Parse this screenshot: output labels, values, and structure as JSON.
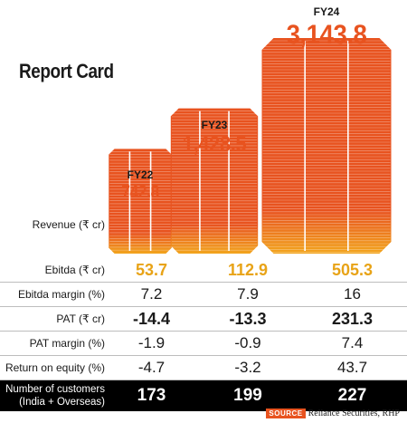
{
  "chart_data": {
    "type": "bar",
    "title": "Report Card",
    "categories": [
      "FY22",
      "FY23",
      "FY24"
    ],
    "series": [
      {
        "name": "Revenue (₹ cr)",
        "values": [
          742.8,
          1428.5,
          3143.8
        ]
      }
    ],
    "value_labels": [
      "742.8",
      "1,428.5",
      "3,143.8"
    ],
    "revenue_label": "Revenue (₹ cr)",
    "colors": {
      "revenue": "#e8531f",
      "ebitda": "#e8a317",
      "gradient_end": "#f2a51e"
    },
    "table": [
      {
        "key": "ebitda",
        "label": "Ebitda (₹ cr)",
        "values": [
          "53.7",
          "112.9",
          "505.3"
        ]
      },
      {
        "key": "ebitda_margin",
        "label": "Ebitda margin (%)",
        "values": [
          "7.2",
          "7.9",
          "16"
        ]
      },
      {
        "key": "pat",
        "label": "PAT (₹ cr)",
        "values": [
          "-14.4",
          "-13.3",
          "231.3"
        ]
      },
      {
        "key": "pat_margin",
        "label": "PAT margin (%)",
        "values": [
          "-1.9",
          "-0.9",
          "7.4"
        ]
      },
      {
        "key": "roe",
        "label": "Return on equity (%)",
        "values": [
          "-4.7",
          "-3.2",
          "43.7"
        ]
      }
    ],
    "customers": {
      "label_line1": "Number of customers",
      "label_line2": "(India + Overseas)",
      "values": [
        "173",
        "199",
        "227"
      ]
    },
    "source": {
      "tag": "SOURCE",
      "text": "Reliance Securities, RHP"
    }
  }
}
